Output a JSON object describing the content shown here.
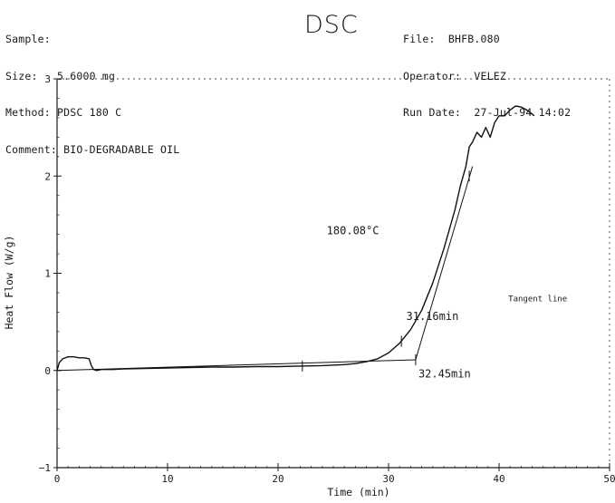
{
  "header": {
    "sample_label": "Sample:",
    "size_label": "Size:",
    "size_value": "5.6000 mg",
    "method_label": "Method:",
    "method_value": "PDSC 180 C",
    "comment_label": "Comment:",
    "comment_value": "BIO-DEGRADABLE OIL",
    "title": "DSC",
    "file_label": "File:",
    "file_value": "BHFB.080",
    "operator_label": "Operator:",
    "operator_value": "VELEZ",
    "run_date_label": "Run Date:",
    "run_date_value": "27-Jul-94 14:02"
  },
  "chart_data": {
    "type": "line",
    "xlabel": "Time  (min)",
    "ylabel": "Heat Flow  (W/g)",
    "xlim": [
      0,
      50
    ],
    "ylim": [
      -1,
      3
    ],
    "x_ticks": [
      0,
      10,
      20,
      30,
      40,
      50
    ],
    "y_ticks": [
      -1,
      0,
      1,
      2,
      3
    ],
    "grid": false,
    "series": [
      {
        "x": [
          0,
          0.2,
          0.5,
          1,
          1.5,
          2,
          2.5,
          2.9,
          3.1,
          3.3,
          3.6,
          4,
          5,
          6,
          8,
          10,
          12,
          14,
          16,
          18,
          20,
          22,
          24,
          26,
          27,
          28,
          29,
          30,
          31,
          32,
          33,
          34,
          35,
          36,
          36.5,
          37,
          37.3,
          37.6,
          38,
          38.4,
          38.8,
          39.2,
          39.6,
          40,
          40.5,
          41,
          41.5,
          42,
          42.5,
          43.2
        ],
        "y": [
          0.0,
          0.08,
          0.12,
          0.14,
          0.14,
          0.13,
          0.13,
          0.12,
          0.05,
          0.01,
          0.0,
          0.01,
          0.01,
          0.015,
          0.02,
          0.025,
          0.03,
          0.035,
          0.035,
          0.04,
          0.04,
          0.045,
          0.05,
          0.06,
          0.07,
          0.09,
          0.12,
          0.18,
          0.28,
          0.42,
          0.62,
          0.9,
          1.25,
          1.65,
          1.9,
          2.1,
          2.3,
          2.35,
          2.45,
          2.4,
          2.5,
          2.4,
          2.55,
          2.62,
          2.62,
          2.68,
          2.72,
          2.71,
          2.68,
          2.62
        ]
      }
    ],
    "baseline": {
      "x": [
        0,
        32.45
      ],
      "y": [
        0.0,
        0.11
      ]
    },
    "tangent_line": {
      "x": [
        32.45,
        37.6
      ],
      "y": [
        0.11,
        2.1
      ]
    },
    "tick_marks": [
      {
        "x": 22.2,
        "y": 0.045
      },
      {
        "x": 31.16,
        "y": 0.3
      },
      {
        "x": 32.45,
        "y": 0.11
      },
      {
        "x": 37.3,
        "y": 2.0
      }
    ],
    "annotations": [
      {
        "text": "180.08°C",
        "x": 24.4,
        "y": 1.4
      },
      {
        "text": "31.16min",
        "x": 31.6,
        "y": 0.52
      },
      {
        "text": "32.45min",
        "x": 32.7,
        "y": -0.07
      },
      {
        "text": "Tangent line",
        "x": 43.5,
        "y": 0.71
      }
    ]
  }
}
